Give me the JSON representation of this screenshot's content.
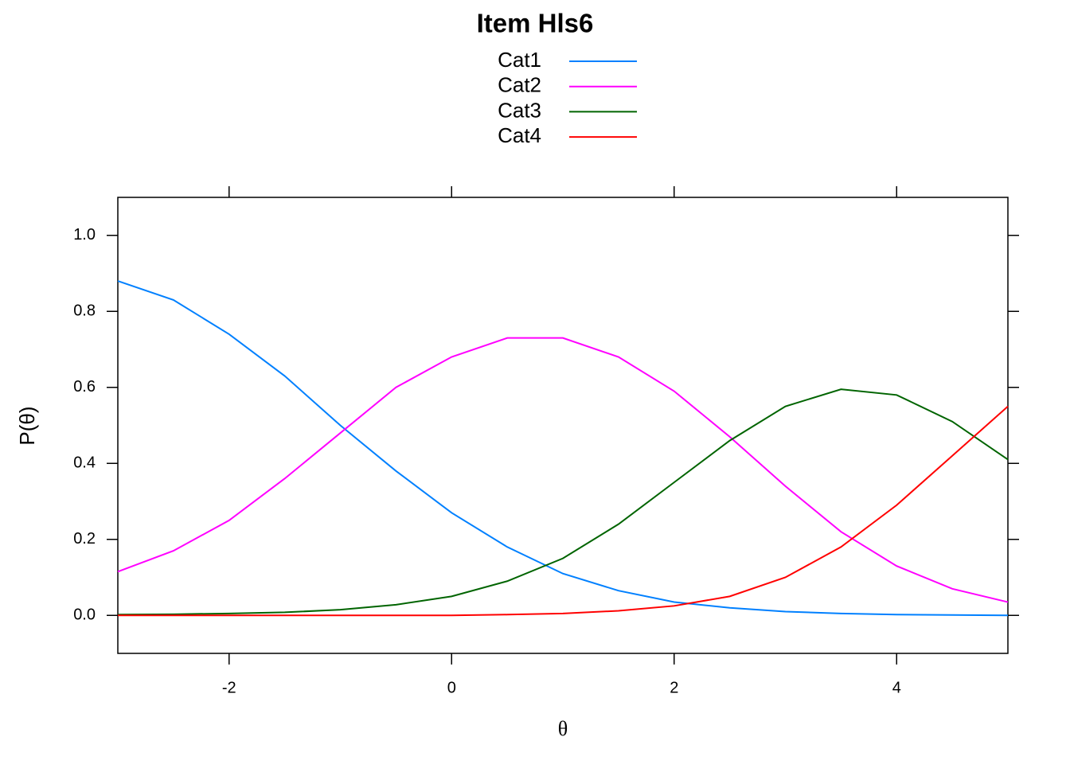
{
  "chart_data": {
    "type": "line",
    "title": "Item Hls6",
    "x_label": "θ",
    "y_label": "P(θ)",
    "x": [
      -3,
      -2.5,
      -2,
      -1.5,
      -1,
      -0.5,
      0,
      0.5,
      1,
      1.5,
      2,
      2.5,
      3,
      3.5,
      4,
      4.5,
      5
    ],
    "series": [
      {
        "name": "Cat1",
        "color": "#0080ff",
        "values": [
          0.88,
          0.83,
          0.74,
          0.63,
          0.5,
          0.38,
          0.27,
          0.18,
          0.11,
          0.065,
          0.035,
          0.02,
          0.01,
          0.005,
          0.002,
          0.001,
          0
        ]
      },
      {
        "name": "Cat2",
        "color": "#ff00ff",
        "values": [
          0.115,
          0.17,
          0.25,
          0.36,
          0.48,
          0.6,
          0.68,
          0.73,
          0.73,
          0.68,
          0.59,
          0.47,
          0.34,
          0.22,
          0.13,
          0.07,
          0.035
        ]
      },
      {
        "name": "Cat3",
        "color": "#006400",
        "values": [
          0.002,
          0.003,
          0.005,
          0.008,
          0.015,
          0.028,
          0.05,
          0.09,
          0.15,
          0.24,
          0.35,
          0.46,
          0.55,
          0.595,
          0.58,
          0.51,
          0.41
        ]
      },
      {
        "name": "Cat4",
        "color": "#ff0000",
        "values": [
          0,
          0,
          0,
          0,
          0,
          0,
          0,
          0.002,
          0.005,
          0.012,
          0.025,
          0.05,
          0.1,
          0.18,
          0.29,
          0.42,
          0.55
        ]
      }
    ],
    "xlim": [
      -3,
      5
    ],
    "ylim": [
      -0.1,
      1.1
    ],
    "xticks": [
      -2,
      0,
      2,
      4
    ],
    "yticks": [
      {
        "value": 0,
        "label": "0.0"
      },
      0.2,
      0.4,
      0.6,
      0.8,
      {
        "value": 1,
        "label": "1.0"
      }
    ]
  }
}
